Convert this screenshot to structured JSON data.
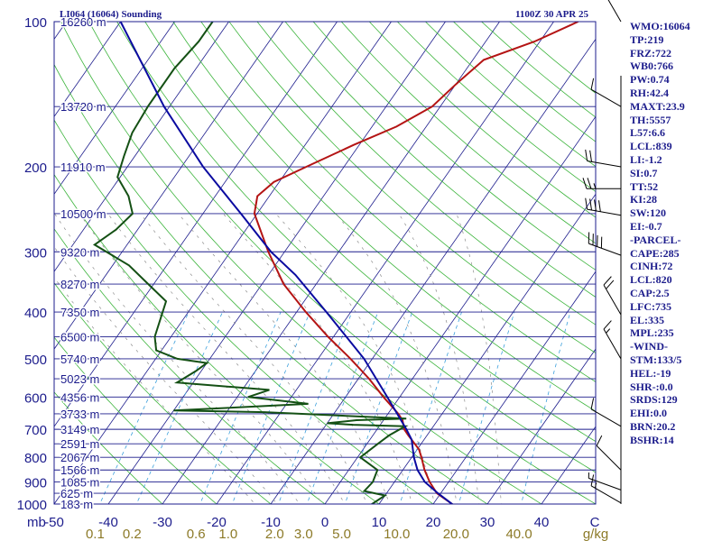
{
  "header": {
    "station": "LI064 (16064) Sounding",
    "time": "1100Z 30 APR 25"
  },
  "indices": [
    "WMO:16064",
    "TP:219",
    "FRZ:722",
    "WB0:766",
    "PW:0.74",
    "RH:42.4",
    "MAXT:23.9",
    "TH:5557",
    "L57:6.6",
    "LCL:839",
    "LI:-1.2",
    "SI:0.7",
    "TT:52",
    "KI:28",
    "SW:120",
    "EI:-0.7",
    "-PARCEL-",
    "CAPE:285",
    "CINH:72",
    "LCL:820",
    "CAP:2.5",
    "LFC:735",
    "EL:335",
    "MPL:235",
    "-WIND-",
    "STM:133/5",
    "HEL:-19",
    "SHR-:0.0",
    "SRDS:129",
    "EHI:0.0",
    "BRN:20.2",
    "BSHR:14"
  ],
  "colors": {
    "isobar": "#1c1c8c",
    "isotherm": "#1c1c8c",
    "dry_adiabat": "#3cb43c",
    "moist_adiabat": "#8c8c8c",
    "mixing_ratio": "#3ca0dc",
    "temperature": "#b41414",
    "dewpoint": "#145014",
    "parcel": "#0a0aa0",
    "mixing_axis": "#8c7a28"
  },
  "chart_data": {
    "type": "line",
    "title": "LI064 (16064) Sounding",
    "subtitle": "1100Z 30 APR 25",
    "x_axis": {
      "label": "C",
      "ticks": [
        -50,
        -40,
        -30,
        -20,
        -10,
        0,
        10,
        20,
        30,
        40
      ],
      "range": [
        -50,
        50
      ],
      "skew": true
    },
    "y_axis": {
      "scale": "log",
      "range": [
        1000,
        100
      ],
      "ticks": [
        100,
        200,
        300,
        400,
        500,
        600,
        700,
        800,
        900,
        1000
      ]
    },
    "corner_label": "mb",
    "mixing_ratio_axis": {
      "label": "g/kg",
      "ticks": [
        "0.1",
        "0.2",
        "0.6",
        "1.0",
        "2.0",
        "3.0",
        "5.0",
        "10.0",
        "20.0",
        "40.0"
      ]
    },
    "heights": [
      {
        "p": 100,
        "label": "16260 m"
      },
      {
        "p": 150,
        "label": "13720 m"
      },
      {
        "p": 200,
        "label": "11910 m"
      },
      {
        "p": 250,
        "label": "10500 m"
      },
      {
        "p": 300,
        "label": "9320 m"
      },
      {
        "p": 350,
        "label": "8270 m"
      },
      {
        "p": 400,
        "label": "7350 m"
      },
      {
        "p": 450,
        "label": "6500 m"
      },
      {
        "p": 500,
        "label": "5740 m"
      },
      {
        "p": 550,
        "label": "5023 m"
      },
      {
        "p": 600,
        "label": "4356 m"
      },
      {
        "p": 650,
        "label": "3733 m"
      },
      {
        "p": 700,
        "label": "3149 m"
      },
      {
        "p": 750,
        "label": "2591 m"
      },
      {
        "p": 800,
        "label": "2067 m"
      },
      {
        "p": 850,
        "label": "1566 m"
      },
      {
        "p": 900,
        "label": "1085 m"
      },
      {
        "p": 950,
        "label": "625 m"
      },
      {
        "p": 1000,
        "label": "183 m"
      }
    ],
    "series": [
      {
        "key": "temperature",
        "points": [
          [
            1013,
            24.5
          ],
          [
            1000,
            23.5
          ],
          [
            950,
            19.3
          ],
          [
            900,
            16.5
          ],
          [
            850,
            14.0
          ],
          [
            800,
            11.8
          ],
          [
            770,
            10.3
          ],
          [
            720,
            6.5
          ],
          [
            700,
            5.0
          ],
          [
            670,
            3.5
          ],
          [
            650,
            1.9
          ],
          [
            600,
            -3.0
          ],
          [
            550,
            -8.0
          ],
          [
            500,
            -14.0
          ],
          [
            450,
            -21.0
          ],
          [
            400,
            -28.3
          ],
          [
            350,
            -36.0
          ],
          [
            300,
            -43.0
          ],
          [
            250,
            -50.5
          ],
          [
            230,
            -52.2
          ],
          [
            215,
            -51.0
          ],
          [
            200,
            -47.0
          ],
          [
            180,
            -41.0
          ],
          [
            165,
            -35.5
          ],
          [
            150,
            -31.5
          ],
          [
            135,
            -30.0
          ],
          [
            120,
            -28.0
          ],
          [
            110,
            -21.0
          ],
          [
            100,
            -15.5
          ]
        ]
      },
      {
        "key": "dewpoint",
        "points": [
          [
            1013,
            9.3
          ],
          [
            1000,
            8.7
          ],
          [
            960,
            10.0
          ],
          [
            940,
            5.6
          ],
          [
            900,
            6.0
          ],
          [
            850,
            5.3
          ],
          [
            800,
            0.5
          ],
          [
            750,
            2.0
          ],
          [
            720,
            3.0
          ],
          [
            690,
            4.8
          ],
          [
            685,
            -5.0
          ],
          [
            680,
            -10.0
          ],
          [
            670,
            -5.0
          ],
          [
            665,
            4.0
          ],
          [
            645,
            -23.0
          ],
          [
            640,
            -40.0
          ],
          [
            620,
            -16.0
          ],
          [
            600,
            -28.0
          ],
          [
            580,
            -25.0
          ],
          [
            560,
            -43.0
          ],
          [
            530,
            -41.0
          ],
          [
            510,
            -40.0
          ],
          [
            500,
            -46.0
          ],
          [
            480,
            -51.0
          ],
          [
            450,
            -53.0
          ],
          [
            380,
            -55.5
          ],
          [
            350,
            -61.0
          ],
          [
            320,
            -67.0
          ],
          [
            290,
            -76.0
          ],
          [
            270,
            -74.0
          ],
          [
            250,
            -73.0
          ],
          [
            230,
            -76.0
          ],
          [
            210,
            -80.5
          ],
          [
            190,
            -82.0
          ],
          [
            170,
            -83.5
          ],
          [
            150,
            -84.0
          ],
          [
            125,
            -84.0
          ],
          [
            110,
            -83.0
          ],
          [
            100,
            -83.0
          ]
        ]
      },
      {
        "key": "parcel",
        "points": [
          [
            1013,
            24.5
          ],
          [
            950,
            19.5
          ],
          [
            900,
            15.6
          ],
          [
            850,
            12.7
          ],
          [
            800,
            10.4
          ],
          [
            735,
            7.7
          ],
          [
            700,
            5.4
          ],
          [
            600,
            -2.3
          ],
          [
            500,
            -11.5
          ],
          [
            400,
            -24.5
          ],
          [
            335,
            -35.0
          ],
          [
            300,
            -42.5
          ],
          [
            250,
            -53.0
          ],
          [
            200,
            -66.0
          ],
          [
            150,
            -81.0
          ],
          [
            100,
            -100.0
          ]
        ]
      }
    ],
    "winds": [
      {
        "p": 995,
        "dir": 300,
        "speed": 15
      },
      {
        "p": 935,
        "dir": 290,
        "speed": 5
      },
      {
        "p": 850,
        "dir": 315,
        "speed": 10
      },
      {
        "p": 690,
        "dir": 300,
        "speed": 10
      },
      {
        "p": 500,
        "dir": 330,
        "speed": 15
      },
      {
        "p": 405,
        "dir": 330,
        "speed": 20
      },
      {
        "p": 305,
        "dir": 290,
        "speed": 40
      },
      {
        "p": 252,
        "dir": 280,
        "speed": 40
      },
      {
        "p": 222,
        "dir": 270,
        "speed": 25
      },
      {
        "p": 200,
        "dir": 280,
        "speed": 20
      },
      {
        "p": 150,
        "dir": 300,
        "speed": 10
      },
      {
        "p": 100,
        "dir": 330,
        "speed": 10
      }
    ]
  }
}
